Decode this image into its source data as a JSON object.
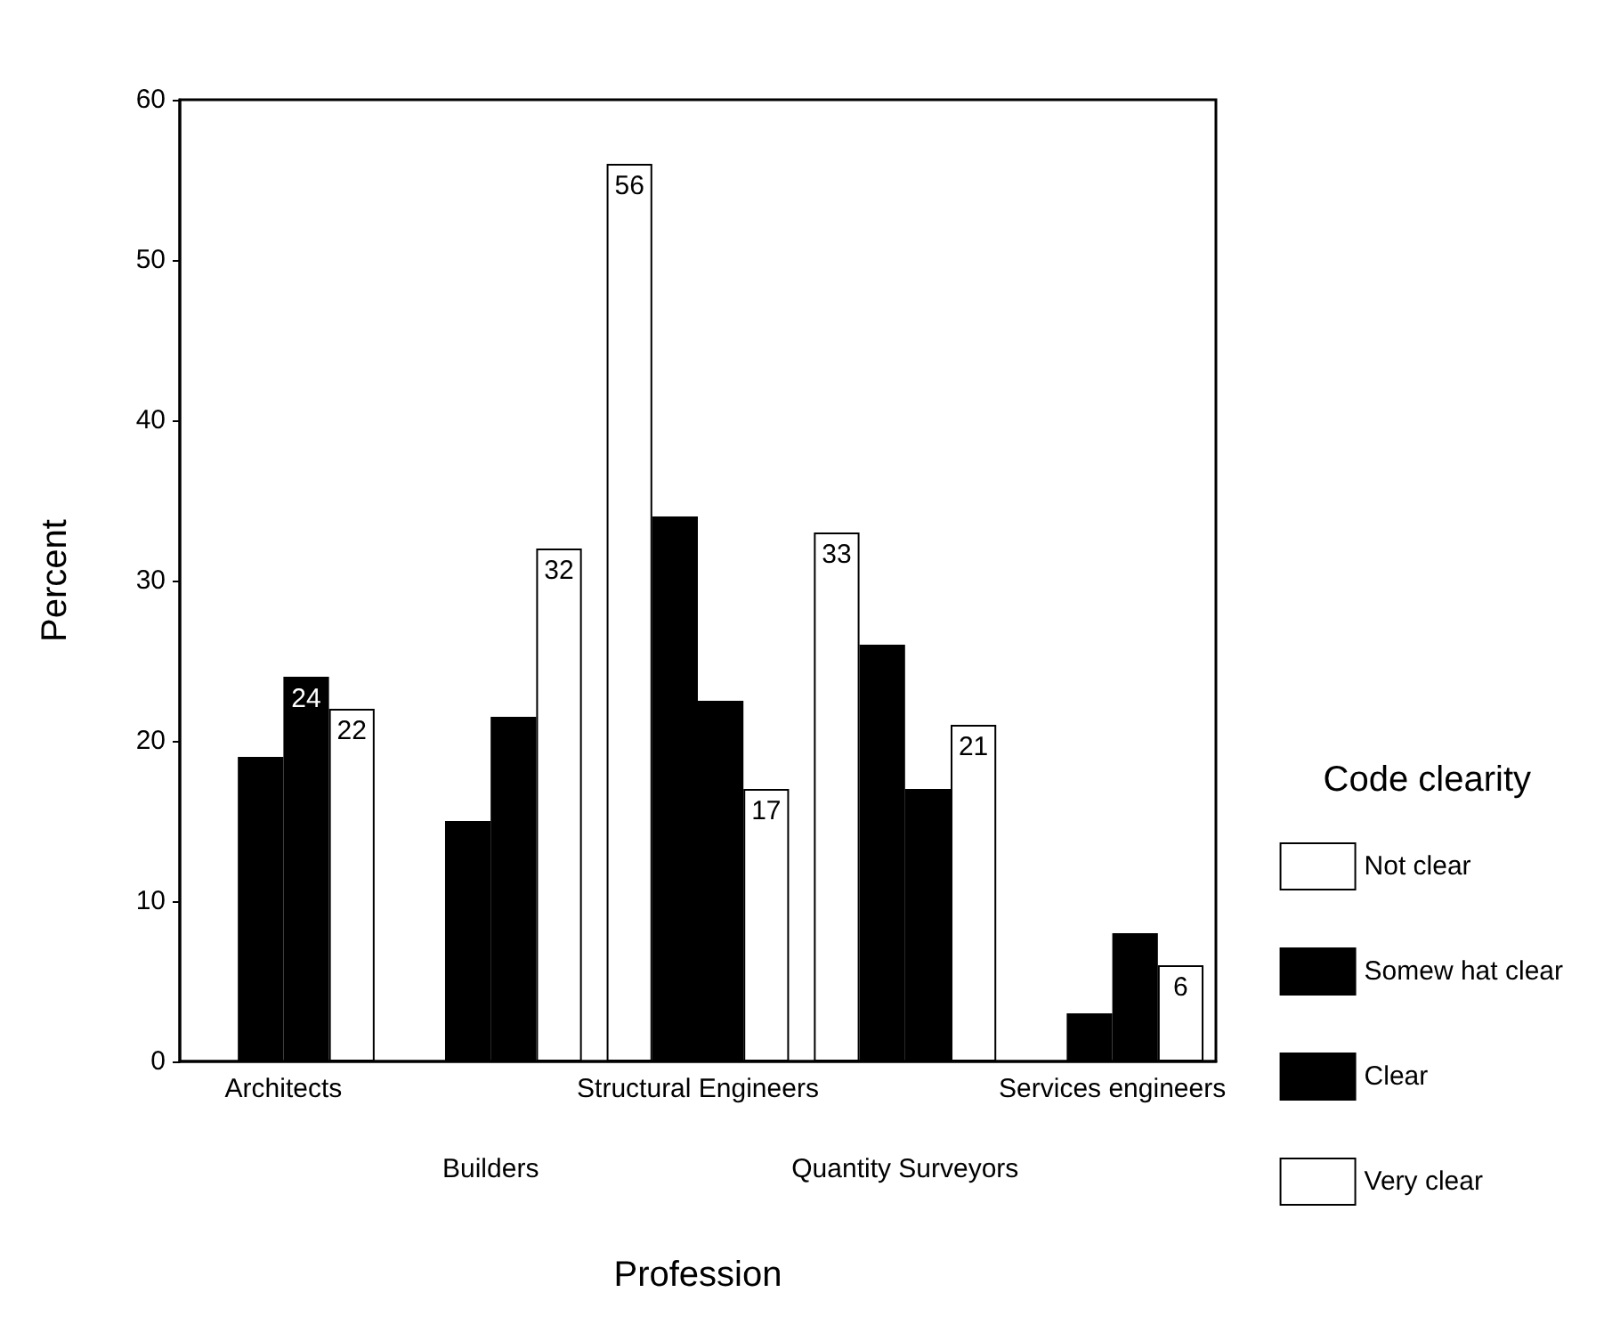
{
  "chart_data": {
    "type": "bar",
    "xlabel": "Profession",
    "ylabel": "Percent",
    "legend_title": "Code clearity",
    "legend": "right",
    "categories": [
      "Architects",
      "Builders",
      "Structural Engineers",
      "Quantity Surveyors",
      "Services engineers"
    ],
    "series": [
      {
        "name": "Not clear",
        "color": "#ffffff",
        "values": [
          null,
          null,
          56,
          33,
          null
        ],
        "value_labels": [
          null,
          null,
          "56",
          "33",
          null
        ]
      },
      {
        "name": "Somew hat clear",
        "color": "#000000",
        "values": [
          19,
          15,
          34,
          26,
          3
        ],
        "value_labels": [
          null,
          null,
          null,
          null,
          null
        ]
      },
      {
        "name": "Clear",
        "color": "#000000",
        "values": [
          24,
          21.5,
          22.5,
          17,
          8
        ],
        "value_labels": [
          "24",
          null,
          null,
          null,
          null
        ]
      },
      {
        "name": "Very clear",
        "color": "#ffffff",
        "values": [
          22,
          32,
          17,
          21,
          6
        ],
        "value_labels": [
          "22",
          "32",
          "17",
          "21",
          "6"
        ]
      }
    ],
    "ylim": [
      0,
      60
    ],
    "yticks": [
      0,
      10,
      20,
      30,
      40,
      50,
      60
    ],
    "grid": false
  }
}
